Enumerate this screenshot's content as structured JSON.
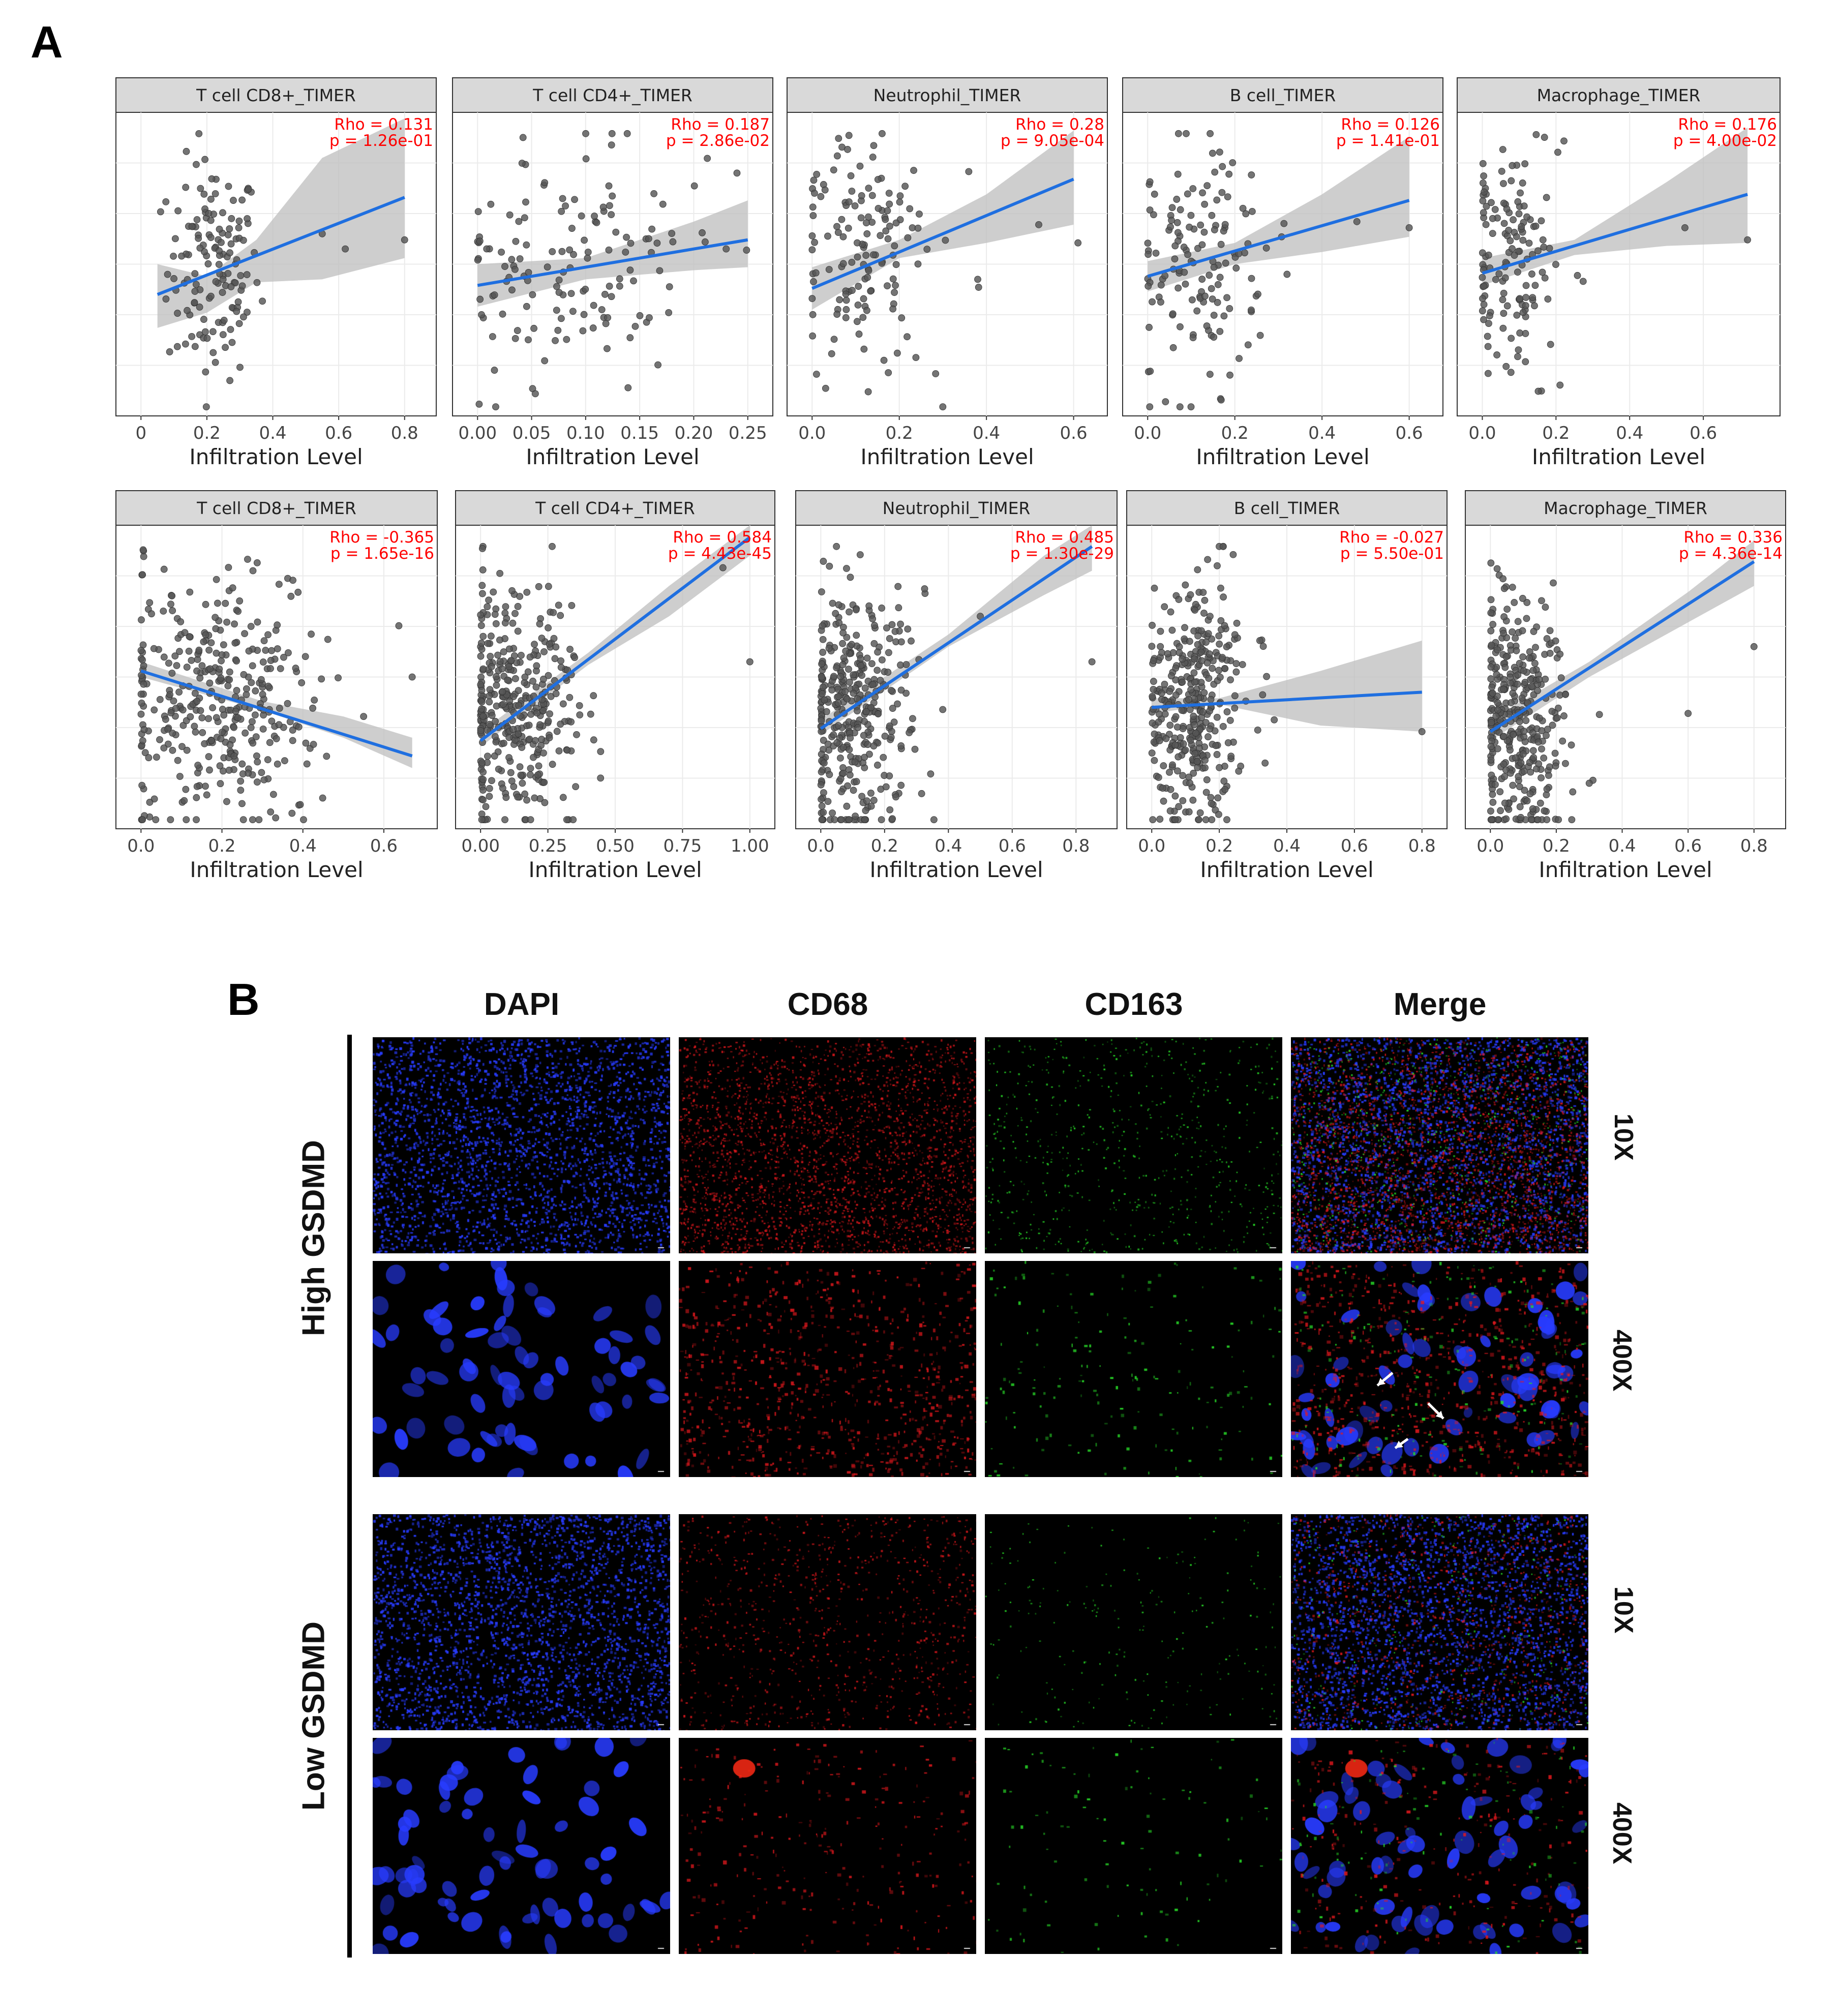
{
  "panel_a_label": "A",
  "panel_b_label": "B",
  "facet_axis_label": "Infiltration Level",
  "chart_data": [
    {
      "type": "scatter",
      "title": "T cell CD8+_TIMER",
      "rho": "Rho = 0.131",
      "p": "p = 1.26e-01",
      "xlim": [
        0,
        0.82
      ],
      "ticks": [
        0,
        0.2,
        0.4,
        0.6,
        0.8
      ],
      "tick_labels": [
        "0",
        "0.2",
        "0.4",
        "0.6",
        "0.8"
      ],
      "line": [
        [
          0.05,
          0.4
        ],
        [
          0.8,
          0.72
        ]
      ],
      "band": [
        [
          0.05,
          0.29,
          0.5
        ],
        [
          0.2,
          0.34,
          0.46
        ],
        [
          0.35,
          0.44,
          0.58
        ],
        [
          0.55,
          0.45,
          0.85
        ],
        [
          0.8,
          0.52,
          0.98
        ]
      ],
      "cluster": {
        "cx": 0.22,
        "sx": 0.07,
        "cy": 0.48,
        "sy": 0.18,
        "n": 140,
        "outliers": [
          [
            0.55,
            0.6
          ],
          [
            0.8,
            0.58
          ],
          [
            0.62,
            0.55
          ]
        ]
      }
    },
    {
      "type": "scatter",
      "title": "T cell CD4+_TIMER",
      "rho": "Rho = 0.187",
      "p": "p = 2.86e-02",
      "xlim": [
        0,
        0.25
      ],
      "ticks": [
        0,
        0.05,
        0.1,
        0.15,
        0.2,
        0.25
      ],
      "tick_labels": [
        "0.00",
        "0.05",
        "0.10",
        "0.15",
        "0.20",
        "0.25"
      ],
      "line": [
        [
          0.0,
          0.43
        ],
        [
          0.25,
          0.58
        ]
      ],
      "band": [
        [
          0.0,
          0.36,
          0.5
        ],
        [
          0.1,
          0.45,
          0.52
        ],
        [
          0.2,
          0.48,
          0.64
        ],
        [
          0.25,
          0.49,
          0.71
        ]
      ],
      "cluster": {
        "cx": 0.09,
        "sx": 0.06,
        "cy": 0.5,
        "sy": 0.2,
        "n": 140,
        "outliers": [
          [
            0.24,
            0.8
          ],
          [
            0.23,
            0.55
          ]
        ]
      }
    },
    {
      "type": "scatter",
      "title": "Neutrophil_TIMER",
      "rho": "Rho = 0.28",
      "p": "p = 9.05e-04",
      "xlim": [
        0,
        0.62
      ],
      "ticks": [
        0,
        0.2,
        0.4,
        0.6
      ],
      "tick_labels": [
        "0.0",
        "0.2",
        "0.4",
        "0.6"
      ],
      "line": [
        [
          0.0,
          0.42
        ],
        [
          0.6,
          0.78
        ]
      ],
      "band": [
        [
          0.0,
          0.35,
          0.49
        ],
        [
          0.2,
          0.52,
          0.58
        ],
        [
          0.4,
          0.57,
          0.73
        ],
        [
          0.6,
          0.63,
          0.94
        ]
      ],
      "cluster": {
        "cx": 0.12,
        "sx": 0.08,
        "cy": 0.5,
        "sy": 0.2,
        "n": 140,
        "outliers": [
          [
            0.52,
            0.63
          ],
          [
            0.61,
            0.57
          ],
          [
            0.38,
            0.45
          ]
        ]
      }
    },
    {
      "type": "scatter",
      "title": "B cell_TIMER",
      "rho": "Rho = 0.126",
      "p": "p = 1.41e-01",
      "xlim": [
        0,
        0.62
      ],
      "ticks": [
        0,
        0.2,
        0.4,
        0.6
      ],
      "tick_labels": [
        "0.0",
        "0.2",
        "0.4",
        "0.6"
      ],
      "line": [
        [
          0.0,
          0.46
        ],
        [
          0.6,
          0.71
        ]
      ],
      "band": [
        [
          0.0,
          0.41,
          0.51
        ],
        [
          0.2,
          0.5,
          0.57
        ],
        [
          0.4,
          0.54,
          0.73
        ],
        [
          0.6,
          0.59,
          0.92
        ]
      ],
      "cluster": {
        "cx": 0.12,
        "sx": 0.08,
        "cy": 0.5,
        "sy": 0.2,
        "n": 140,
        "outliers": [
          [
            0.48,
            0.64
          ],
          [
            0.6,
            0.62
          ]
        ]
      }
    },
    {
      "type": "scatter",
      "title": "Macrophage_TIMER",
      "rho": "Rho = 0.176",
      "p": "p = 4.00e-02",
      "xlim": [
        0,
        0.74
      ],
      "ticks": [
        0,
        0.2,
        0.4,
        0.6
      ],
      "tick_labels": [
        "0.0",
        "0.2",
        "0.4",
        "0.6"
      ],
      "line": [
        [
          0.0,
          0.47
        ],
        [
          0.72,
          0.73
        ]
      ],
      "band": [
        [
          0.0,
          0.43,
          0.52
        ],
        [
          0.25,
          0.53,
          0.58
        ],
        [
          0.5,
          0.56,
          0.77
        ],
        [
          0.72,
          0.57,
          0.95
        ]
      ],
      "cluster": {
        "cx": 0.08,
        "sx": 0.07,
        "cy": 0.5,
        "sy": 0.2,
        "n": 140,
        "outliers": [
          [
            0.72,
            0.58
          ],
          [
            0.55,
            0.62
          ]
        ]
      }
    },
    {
      "type": "scatter",
      "title": "T cell CD8+_TIMER",
      "rho": "Rho = -0.365",
      "p": "p = 1.65e-16",
      "xlim": [
        0,
        0.67
      ],
      "ticks": [
        0,
        0.2,
        0.4,
        0.6
      ],
      "tick_labels": [
        "0.0",
        "0.2",
        "0.4",
        "0.6"
      ],
      "line": [
        [
          0.0,
          0.52
        ],
        [
          0.67,
          0.24
        ]
      ],
      "band": [
        [
          0.0,
          0.5,
          0.55
        ],
        [
          0.3,
          0.39,
          0.42
        ],
        [
          0.5,
          0.3,
          0.37
        ],
        [
          0.67,
          0.2,
          0.3
        ]
      ],
      "cluster": {
        "cx": 0.18,
        "sx": 0.13,
        "cy": 0.42,
        "sy": 0.2,
        "n": 360,
        "outliers": [
          [
            0.67,
            0.5
          ],
          [
            0.55,
            0.37
          ]
        ]
      }
    },
    {
      "type": "scatter",
      "title": "T cell CD4+_TIMER",
      "rho": "Rho = 0.584",
      "p": "p = 4.43e-45",
      "xlim": [
        0,
        1.0
      ],
      "ticks": [
        0,
        0.25,
        0.5,
        0.75,
        1.0
      ],
      "tick_labels": [
        "0.00",
        "0.25",
        "0.50",
        "0.75",
        "1.00"
      ],
      "line": [
        [
          0.0,
          0.29
        ],
        [
          1.0,
          0.96
        ]
      ],
      "band": [
        [
          0.0,
          0.27,
          0.32
        ],
        [
          0.4,
          0.54,
          0.58
        ],
        [
          0.7,
          0.7,
          0.8
        ],
        [
          1.0,
          0.9,
          1.0
        ]
      ],
      "cluster": {
        "cx": 0.12,
        "sx": 0.12,
        "cy": 0.4,
        "sy": 0.2,
        "n": 360,
        "outliers": [
          [
            1.0,
            0.55
          ],
          [
            0.9,
            0.86
          ]
        ]
      }
    },
    {
      "type": "scatter",
      "title": "Neutrophil_TIMER",
      "rho": "Rho = 0.485",
      "p": "p = 1.30e-29",
      "xlim": [
        0,
        0.85
      ],
      "ticks": [
        0,
        0.2,
        0.4,
        0.6,
        0.8
      ],
      "tick_labels": [
        "0.0",
        "0.2",
        "0.4",
        "0.6",
        "0.8"
      ],
      "line": [
        [
          0.0,
          0.33
        ],
        [
          0.85,
          0.93
        ]
      ],
      "band": [
        [
          0.0,
          0.31,
          0.36
        ],
        [
          0.4,
          0.6,
          0.64
        ],
        [
          0.7,
          0.77,
          0.9
        ],
        [
          0.85,
          0.85,
          1.0
        ]
      ],
      "cluster": {
        "cx": 0.1,
        "sx": 0.09,
        "cy": 0.38,
        "sy": 0.2,
        "n": 360,
        "outliers": [
          [
            0.85,
            0.55
          ],
          [
            0.5,
            0.7
          ]
        ]
      }
    },
    {
      "type": "scatter",
      "title": "B cell_TIMER",
      "rho": "Rho = -0.027",
      "p": "p = 5.50e-01",
      "xlim": [
        0,
        0.8
      ],
      "ticks": [
        0,
        0.2,
        0.4,
        0.6,
        0.8
      ],
      "tick_labels": [
        "0.0",
        "0.2",
        "0.4",
        "0.6",
        "0.8"
      ],
      "line": [
        [
          0.0,
          0.4
        ],
        [
          0.8,
          0.45
        ]
      ],
      "band": [
        [
          0.0,
          0.38,
          0.43
        ],
        [
          0.2,
          0.41,
          0.43
        ],
        [
          0.5,
          0.34,
          0.52
        ],
        [
          0.8,
          0.32,
          0.62
        ]
      ],
      "cluster": {
        "cx": 0.13,
        "sx": 0.08,
        "cy": 0.4,
        "sy": 0.2,
        "n": 360,
        "outliers": [
          [
            0.8,
            0.32
          ],
          [
            0.32,
            0.62
          ]
        ]
      }
    },
    {
      "type": "scatter",
      "title": "Macrophage_TIMER",
      "rho": "Rho = 0.336",
      "p": "p = 4.36e-14",
      "xlim": [
        0,
        0.82
      ],
      "ticks": [
        0,
        0.2,
        0.4,
        0.6,
        0.8
      ],
      "tick_labels": [
        "0.0",
        "0.2",
        "0.4",
        "0.6",
        "0.8"
      ],
      "line": [
        [
          0.0,
          0.32
        ],
        [
          0.8,
          0.88
        ]
      ],
      "band": [
        [
          0.0,
          0.29,
          0.36
        ],
        [
          0.3,
          0.5,
          0.55
        ],
        [
          0.6,
          0.68,
          0.78
        ],
        [
          0.8,
          0.8,
          0.95
        ]
      ],
      "cluster": {
        "cx": 0.08,
        "sx": 0.07,
        "cy": 0.36,
        "sy": 0.2,
        "n": 360,
        "outliers": [
          [
            0.8,
            0.6
          ],
          [
            0.6,
            0.38
          ],
          [
            0.3,
            0.15
          ]
        ]
      }
    }
  ],
  "colors": {
    "facet_header_bg": "#d9d9d9",
    "regression_line": "#1f6fe0",
    "confidence_band": "#bdbdbd",
    "points": "#555555",
    "stat_text": "#ff0000",
    "dapi": "#1a2cff",
    "cd68": "#e0141e",
    "cd163": "#1ecc1e"
  },
  "micrograph_panel": {
    "column_headers": [
      "DAPI",
      "CD68",
      "CD163",
      "Merge"
    ],
    "row_groups": [
      "High GSDMD",
      "Low GSDMD"
    ],
    "magnifications": [
      "10X",
      "400X",
      "10X",
      "400X"
    ]
  }
}
